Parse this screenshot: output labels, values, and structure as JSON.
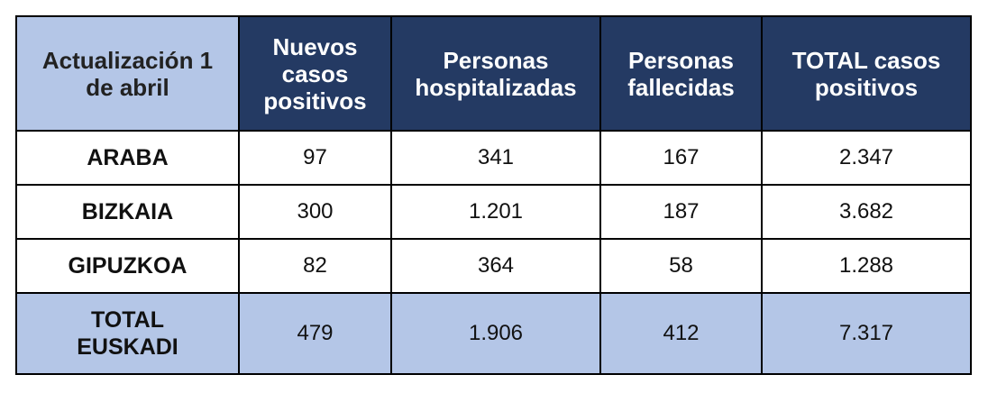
{
  "header": [
    "Actualización 1 de abril",
    "Nuevos casos positivos",
    "Personas hospitalizadas",
    "Personas fallecidas",
    "TOTAL casos positivos"
  ],
  "rows": [
    {
      "label": "ARABA",
      "values": [
        "97",
        "341",
        "167",
        "2.347"
      ]
    },
    {
      "label": "BIZKAIA",
      "values": [
        "300",
        "1.201",
        "187",
        "3.682"
      ]
    },
    {
      "label": "GIPUZKOA",
      "values": [
        "82",
        "364",
        "58",
        "1.288"
      ]
    }
  ],
  "total": {
    "label": "TOTAL EUSKADI",
    "values": [
      "479",
      "1.906",
      "412",
      "7.317"
    ]
  },
  "colors": {
    "header": "#243a63",
    "highlight": "#b4c6e7"
  }
}
